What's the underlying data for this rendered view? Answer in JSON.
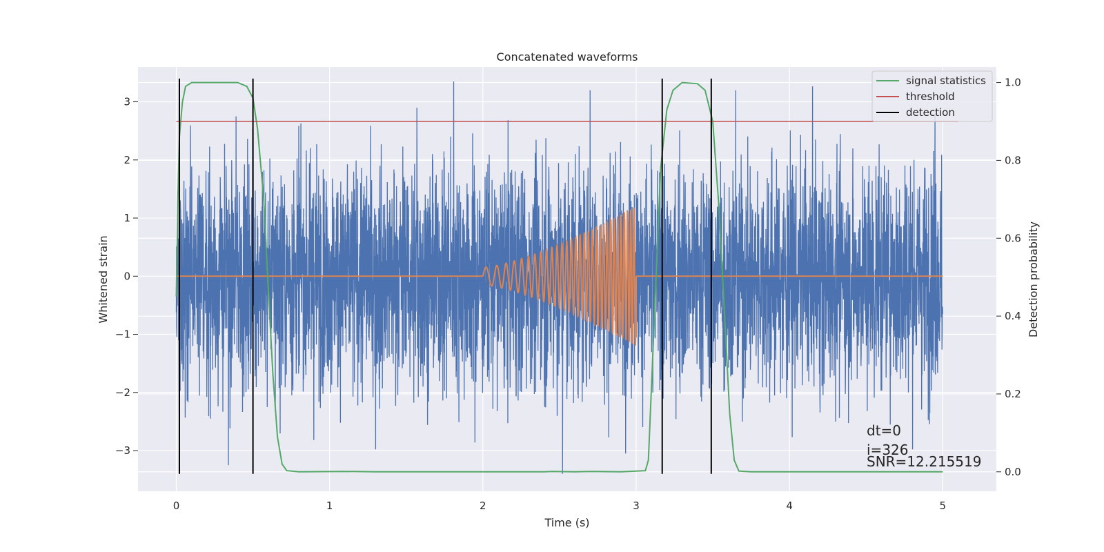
{
  "chart_data": {
    "type": "line",
    "title": "Concatenated waveforms",
    "xlabel": "Time (s)",
    "ylabel": "Whitened strain",
    "ylabel_right": "Detection probability",
    "xlim": [
      -0.25,
      5.35
    ],
    "ylim": [
      -3.7,
      3.6
    ],
    "ylim_right": [
      -0.05,
      1.04
    ],
    "x_ticks": [
      0,
      1,
      2,
      3,
      4,
      5
    ],
    "y_ticks": [
      -3,
      -2,
      -1,
      0,
      1,
      2,
      3
    ],
    "y_ticks_right": [
      0.0,
      0.2,
      0.4,
      0.6,
      0.8,
      1.0
    ],
    "grid": true,
    "legend": {
      "placement": "top-right",
      "entries": [
        {
          "label": "signal statistics",
          "color": "#55a868"
        },
        {
          "label": "threshold",
          "color": "#c44e52"
        },
        {
          "label": "detection",
          "color": "#000000"
        }
      ]
    },
    "noise": {
      "x_range": [
        0,
        5
      ],
      "color": "#4c72b0",
      "approx_amplitude_envelope": [
        -3.4,
        3.4
      ],
      "outliers": [
        {
          "x": 0.34,
          "y": -3.25
        },
        {
          "x": 1.3,
          "y": -2.98
        },
        {
          "x": 1.57,
          "y": 2.9
        },
        {
          "x": 1.81,
          "y": 3.35
        },
        {
          "x": 2.52,
          "y": -3.4
        },
        {
          "x": 2.7,
          "y": 3.2
        },
        {
          "x": 3.65,
          "y": 3.2
        },
        {
          "x": 4.95,
          "y": 2.8
        },
        {
          "x": 0.39,
          "y": 2.75
        }
      ]
    },
    "injected_signal": {
      "color": "#dd8452",
      "x_range": [
        2.0,
        3.0
      ],
      "zero_baseline_range": [
        0,
        5
      ],
      "start_amplitude": 0.15,
      "end_amplitude": 1.2,
      "start_frequency_hz": 12,
      "end_frequency_hz": 50
    },
    "signal_statistics": {
      "color": "#55a868",
      "points": [
        [
          0.0,
          0.45
        ],
        [
          0.01,
          0.7
        ],
        [
          0.02,
          0.86
        ],
        [
          0.04,
          0.95
        ],
        [
          0.06,
          0.99
        ],
        [
          0.1,
          1.0
        ],
        [
          0.4,
          1.0
        ],
        [
          0.46,
          0.99
        ],
        [
          0.5,
          0.96
        ],
        [
          0.53,
          0.88
        ],
        [
          0.57,
          0.7
        ],
        [
          0.6,
          0.47
        ],
        [
          0.63,
          0.25
        ],
        [
          0.66,
          0.09
        ],
        [
          0.69,
          0.02
        ],
        [
          0.72,
          0.003
        ],
        [
          0.8,
          0.0
        ],
        [
          1.1,
          0.001
        ],
        [
          1.3,
          0.0
        ],
        [
          2.4,
          0.0
        ],
        [
          2.45,
          0.001
        ],
        [
          2.6,
          0.0
        ],
        [
          2.7,
          0.001
        ],
        [
          2.9,
          0.0
        ],
        [
          3.06,
          0.003
        ],
        [
          3.08,
          0.03
        ],
        [
          3.1,
          0.22
        ],
        [
          3.13,
          0.5
        ],
        [
          3.16,
          0.78
        ],
        [
          3.2,
          0.93
        ],
        [
          3.24,
          0.98
        ],
        [
          3.3,
          1.0
        ],
        [
          3.4,
          0.997
        ],
        [
          3.45,
          0.98
        ],
        [
          3.5,
          0.9
        ],
        [
          3.54,
          0.68
        ],
        [
          3.58,
          0.38
        ],
        [
          3.61,
          0.15
        ],
        [
          3.64,
          0.03
        ],
        [
          3.67,
          0.002
        ],
        [
          3.75,
          0.0
        ],
        [
          5.0,
          0.0
        ]
      ]
    },
    "threshold": {
      "color": "#c44e52",
      "value": 0.9,
      "x_range": [
        0,
        5.1
      ]
    },
    "detections": {
      "color": "#000000",
      "x": [
        0.02,
        0.5,
        3.17,
        3.49
      ],
      "y_range": [
        -3.4,
        3.4
      ]
    },
    "annotations": [
      {
        "text": "dt=0"
      },
      {
        "text": "i=326"
      },
      {
        "text": "SNR=12.215519"
      }
    ]
  }
}
